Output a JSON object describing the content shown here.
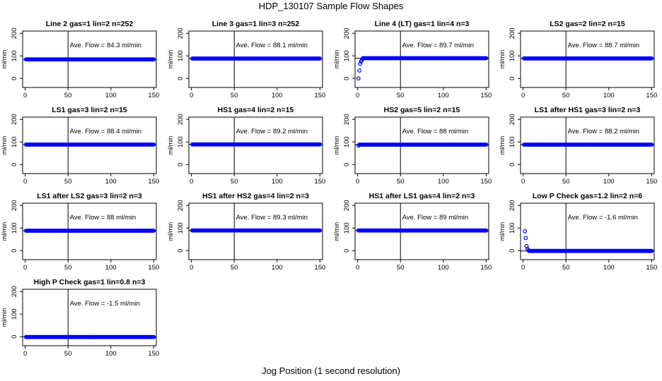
{
  "page": {
    "title": "HDP_130107  Sample Flow Shapes",
    "xlabel": "Jog Position (1 second resolution)"
  },
  "chart_data": [
    {
      "type": "scatter",
      "title": "Line 2 gas=1 lin=2 n=252",
      "ylabel": "ml/min",
      "xlim": [
        -3,
        153
      ],
      "ylim": [
        -40,
        210
      ],
      "xticks": [
        0,
        50,
        100,
        150
      ],
      "yticks": [
        0,
        100,
        200
      ],
      "vline": 50,
      "hline": 84.3,
      "annotation": "Ave. Flow =  84.3  ml/min",
      "points": {
        "x_start": 1,
        "x_end": 150,
        "y": 84.3
      },
      "lead_points": [],
      "point_color": "#0000ff"
    },
    {
      "type": "scatter",
      "title": "Line 3 gas=1 lin=3 n=252",
      "ylabel": "ml/min",
      "xlim": [
        -3,
        153
      ],
      "ylim": [
        -40,
        210
      ],
      "xticks": [
        0,
        50,
        100,
        150
      ],
      "yticks": [
        0,
        100,
        200
      ],
      "vline": 50,
      "hline": 88.1,
      "annotation": "Ave. Flow =  88.1  ml/min",
      "points": {
        "x_start": 1,
        "x_end": 150,
        "y": 88.1
      },
      "lead_points": [],
      "point_color": "#0000ff"
    },
    {
      "type": "scatter",
      "title": "Line 4 (LT) gas=1 lin=4 n=3",
      "ylabel": "ml/min",
      "xlim": [
        -3,
        153
      ],
      "ylim": [
        -40,
        210
      ],
      "xticks": [
        0,
        50,
        100,
        150
      ],
      "yticks": [
        0,
        100,
        200
      ],
      "vline": 50,
      "hline": 89.7,
      "annotation": "Ave. Flow =  89.7  ml/min",
      "points": {
        "x_start": 6,
        "x_end": 150,
        "y": 89.7
      },
      "lead_points": [
        [
          1,
          0
        ],
        [
          2,
          35
        ],
        [
          3,
          65
        ],
        [
          4,
          75
        ],
        [
          5,
          82
        ]
      ],
      "point_color": "#0000ff"
    },
    {
      "type": "scatter",
      "title": "LS2 gas=2 lin=2 n=15",
      "ylabel": "ml/min",
      "xlim": [
        -3,
        153
      ],
      "ylim": [
        -40,
        210
      ],
      "xticks": [
        0,
        50,
        100,
        150
      ],
      "yticks": [
        0,
        100,
        200
      ],
      "vline": 50,
      "hline": 88.7,
      "annotation": "Ave. Flow =  88.7  ml/min",
      "points": {
        "x_start": 1,
        "x_end": 150,
        "y": 88.7
      },
      "lead_points": [],
      "point_color": "#0000ff"
    },
    {
      "type": "scatter",
      "title": "LS1 gas=3 lin=2 n=15",
      "ylabel": "ml/min",
      "xlim": [
        -3,
        153
      ],
      "ylim": [
        -40,
        210
      ],
      "xticks": [
        0,
        50,
        100,
        150
      ],
      "yticks": [
        0,
        100,
        200
      ],
      "vline": 50,
      "hline": 88.4,
      "annotation": "Ave. Flow =  88.4  ml/min",
      "points": {
        "x_start": 1,
        "x_end": 150,
        "y": 88.4
      },
      "lead_points": [],
      "point_color": "#0000ff"
    },
    {
      "type": "scatter",
      "title": "HS1 gas=4 lin=2 n=15",
      "ylabel": "ml/min",
      "xlim": [
        -3,
        153
      ],
      "ylim": [
        -40,
        210
      ],
      "xticks": [
        0,
        50,
        100,
        150
      ],
      "yticks": [
        0,
        100,
        200
      ],
      "vline": 50,
      "hline": 89.2,
      "annotation": "Ave. Flow =  89.2  ml/min",
      "points": {
        "x_start": 1,
        "x_end": 150,
        "y": 89.2
      },
      "lead_points": [],
      "point_color": "#0000ff"
    },
    {
      "type": "scatter",
      "title": "HS2 gas=5 lin=2 n=15",
      "ylabel": "ml/min",
      "xlim": [
        -3,
        153
      ],
      "ylim": [
        -40,
        210
      ],
      "xticks": [
        0,
        50,
        100,
        150
      ],
      "yticks": [
        0,
        100,
        200
      ],
      "vline": 50,
      "hline": 88,
      "annotation": "Ave. Flow =  88  ml/min",
      "points": {
        "x_start": 2,
        "x_end": 150,
        "y": 88
      },
      "lead_points": [
        [
          1,
          84
        ]
      ],
      "point_color": "#0000ff"
    },
    {
      "type": "scatter",
      "title": "LS1 after HS1 gas=3 lin=2 n=3",
      "ylabel": "ml/min",
      "xlim": [
        -3,
        153
      ],
      "ylim": [
        -40,
        210
      ],
      "xticks": [
        0,
        50,
        100,
        150
      ],
      "yticks": [
        0,
        100,
        200
      ],
      "vline": 50,
      "hline": 88.2,
      "annotation": "Ave. Flow =  88.2  ml/min",
      "points": {
        "x_start": 1,
        "x_end": 150,
        "y": 88.2
      },
      "lead_points": [],
      "point_color": "#0000ff"
    },
    {
      "type": "scatter",
      "title": "LS1 after LS2 gas=3 lin=2 n=3",
      "ylabel": "ml/min",
      "xlim": [
        -3,
        153
      ],
      "ylim": [
        -40,
        210
      ],
      "xticks": [
        0,
        50,
        100,
        150
      ],
      "yticks": [
        0,
        100,
        200
      ],
      "vline": 50,
      "hline": 88,
      "annotation": "Ave. Flow =  88  ml/min",
      "points": {
        "x_start": 1,
        "x_end": 150,
        "y": 88
      },
      "lead_points": [],
      "point_color": "#0000ff"
    },
    {
      "type": "scatter",
      "title": "HS1 after HS2 gas=4 lin=2 n=3",
      "ylabel": "ml/min",
      "xlim": [
        -3,
        153
      ],
      "ylim": [
        -40,
        210
      ],
      "xticks": [
        0,
        50,
        100,
        150
      ],
      "yticks": [
        0,
        100,
        200
      ],
      "vline": 50,
      "hline": 89.3,
      "annotation": "Ave. Flow =  89.3  ml/min",
      "points": {
        "x_start": 1,
        "x_end": 150,
        "y": 89.3
      },
      "lead_points": [],
      "point_color": "#0000ff"
    },
    {
      "type": "scatter",
      "title": "HS1 after LS1 gas=4 lin=2 n=3",
      "ylabel": "ml/min",
      "xlim": [
        -3,
        153
      ],
      "ylim": [
        -40,
        210
      ],
      "xticks": [
        0,
        50,
        100,
        150
      ],
      "yticks": [
        0,
        100,
        200
      ],
      "vline": 50,
      "hline": 89,
      "annotation": "Ave. Flow =  89  ml/min",
      "points": {
        "x_start": 1,
        "x_end": 150,
        "y": 89
      },
      "lead_points": [],
      "point_color": "#0000ff"
    },
    {
      "type": "scatter",
      "title": "Low P Check gas=1.2 lin=2 n=6",
      "ylabel": "ml/min",
      "xlim": [
        -3,
        153
      ],
      "ylim": [
        -40,
        210
      ],
      "xticks": [
        0,
        50,
        100,
        150
      ],
      "yticks": [
        0,
        100,
        200
      ],
      "vline": 50,
      "hline": -1.6,
      "annotation": "Ave. Flow =  -1.6  ml/min",
      "points": {
        "x_start": 7,
        "x_end": 150,
        "y": -1.6
      },
      "lead_points": [
        [
          2,
          86
        ],
        [
          3,
          56
        ],
        [
          4,
          20
        ],
        [
          5,
          8
        ],
        [
          6,
          2
        ]
      ],
      "point_color": "#0000ff"
    },
    {
      "type": "scatter",
      "title": "High P Check gas=1 lin=0.8 n=3",
      "ylabel": "ml/min",
      "xlim": [
        -3,
        153
      ],
      "ylim": [
        -40,
        210
      ],
      "xticks": [
        0,
        50,
        100,
        150
      ],
      "yticks": [
        0,
        100,
        200
      ],
      "vline": 50,
      "hline": -1.5,
      "annotation": "Ave. Flow =  -1.5  ml/min",
      "points": {
        "x_start": 1,
        "x_end": 150,
        "y": -1.5
      },
      "lead_points": [],
      "point_color": "#0000ff"
    }
  ]
}
